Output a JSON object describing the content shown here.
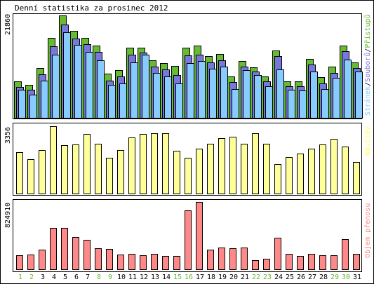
{
  "chart_data": {
    "type": "bar",
    "title": "Denní statistika za prosinec 2012",
    "categories": [
      "1",
      "2",
      "3",
      "4",
      "5",
      "6",
      "7",
      "8",
      "9",
      "10",
      "11",
      "12",
      "13",
      "14",
      "15",
      "16",
      "17",
      "18",
      "19",
      "20",
      "21",
      "22",
      "23",
      "24",
      "25",
      "26",
      "27",
      "28",
      "29",
      "30",
      "31"
    ],
    "weekend_days": [
      "1",
      "2",
      "8",
      "9",
      "15",
      "16",
      "22",
      "23",
      "29",
      "30"
    ],
    "colors": {
      "hits": "#66bb33",
      "files": "#7777dd",
      "pages": "#88ccff",
      "visits": "#ffff99",
      "kbytes": "#ff8888",
      "weekend_label": "#66bb33",
      "weekday_label": "#000000"
    },
    "panels": [
      {
        "id": "traffic",
        "ymax_label": "21860",
        "ymax": 21860,
        "legend": {
          "pages": "Stránek",
          "separator1": "/",
          "files": "Souborů",
          "separator2": "/",
          "hits": "Přístupů"
        },
        "series": [
          {
            "key": "hits",
            "values": [
              7850,
              7050,
              10660,
              17050,
              21860,
              18620,
              17040,
              15470,
              9420,
              10200,
              15000,
              15000,
              12300,
              11720,
              11140,
              15020,
              15350,
              13240,
              13660,
              8880,
              12200,
              10850,
              8890,
              14420,
              7850,
              7850,
              12530,
              8750,
              10980,
              15350,
              11780
            ]
          },
          {
            "key": "files",
            "values": [
              6650,
              5960,
              9270,
              15280,
              19880,
              16880,
              15690,
              14030,
              8000,
              8780,
              13410,
              13930,
              11000,
              10280,
              9140,
              13400,
              13410,
              11850,
              12230,
              7620,
              11000,
              9900,
              7800,
              13190,
              6780,
              6720,
              11350,
              7300,
              9640,
              14160,
              10630
            ]
          },
          {
            "key": "pages",
            "values": [
              5920,
              4960,
              7870,
              13430,
              18300,
              15580,
              14050,
              12310,
              7000,
              7350,
              11870,
              13460,
              9520,
              8870,
              7380,
              11740,
              12150,
              10460,
              10920,
              6170,
              10150,
              9150,
              6770,
              10320,
              5950,
              5810,
              9880,
              6130,
              8580,
              12440,
              9840
            ]
          }
        ]
      },
      {
        "id": "visits",
        "ymax_label": "3356",
        "ymax": 3356,
        "legend": {
          "visits": "Návštěv"
        },
        "series": [
          {
            "key": "visits",
            "values": [
              2070,
              1730,
              2180,
              3356,
              2400,
              2440,
              2960,
              2470,
              1780,
              2180,
              2780,
              2970,
              3020,
              3020,
              2120,
              1770,
              2230,
              2470,
              2760,
              2840,
              2470,
              3000,
              2480,
              1480,
              1830,
              2000,
              2230,
              2460,
              2740,
              2340,
              1560
            ]
          }
        ]
      },
      {
        "id": "kbytes",
        "ymax_label": "824910",
        "ymax": 824910,
        "legend": {
          "kbytes": "Objem přenosu"
        },
        "series": [
          {
            "key": "kbytes",
            "values": [
              171000,
              178000,
              239000,
              509000,
              509000,
              395000,
              362000,
              262000,
              253000,
              179000,
              189000,
              171000,
              190000,
              160000,
              160000,
              719000,
              824910,
              239000,
              265000,
              255000,
              265000,
              111000,
              131000,
              389000,
              189000,
              160000,
              189000,
              171000,
              171000,
              371000,
              189000
            ]
          }
        ]
      }
    ]
  }
}
